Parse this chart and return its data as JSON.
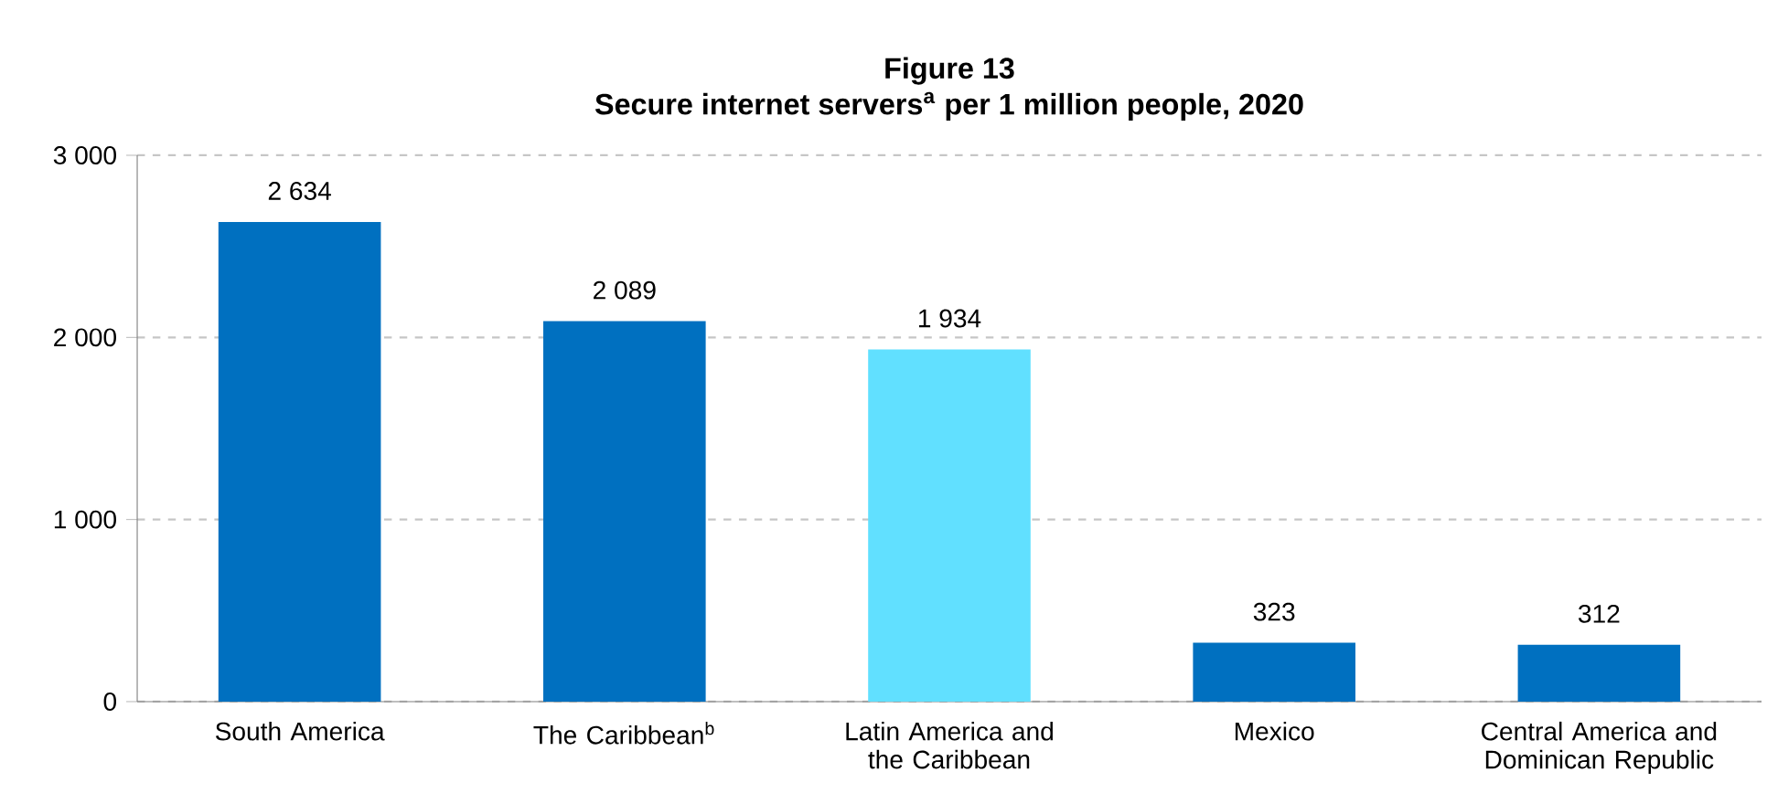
{
  "chart_data": {
    "type": "bar",
    "title": "Figure 13",
    "subtitle": "Secure internet servers$^{a}$ per 1 million people, 2020",
    "categories": [
      "South America",
      "The Caribbean$^{b}$",
      "Latin America and the Caribbean",
      "Mexico",
      "Central America and Dominican Republic"
    ],
    "values": [
      2634,
      2089,
      1934,
      323,
      312
    ],
    "value_labels": [
      "2 634",
      "2 089",
      "1 934",
      "323",
      "312"
    ],
    "colors": [
      "#0070c0",
      "#0070c0",
      "#61e0ff",
      "#0070c0",
      "#0070c0"
    ],
    "ylim": [
      0,
      3000
    ],
    "yticks": [
      {
        "value": 0,
        "label": "0"
      },
      {
        "value": 1000,
        "label": "1 000"
      },
      {
        "value": 2000,
        "label": "2 000"
      },
      {
        "value": 3000,
        "label": "3 000"
      }
    ],
    "grid": "y"
  }
}
